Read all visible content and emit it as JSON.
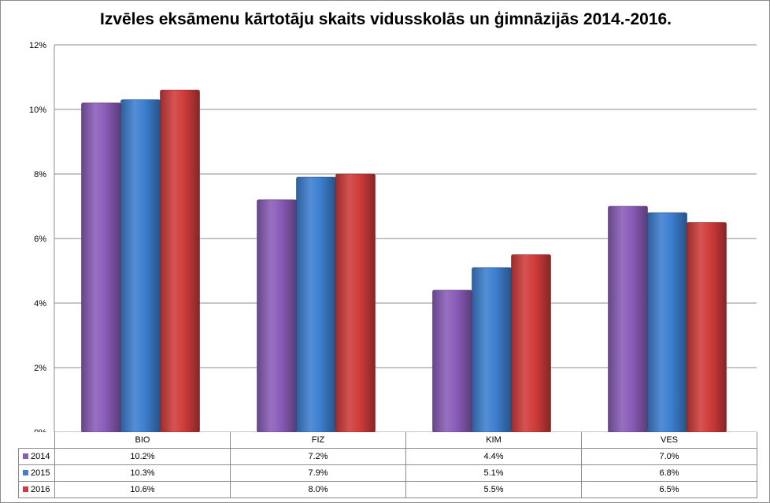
{
  "chart_data": {
    "type": "bar",
    "title": "Izvēles eksāmenu kārtotāju skaits vidusskolās un ģimnāzijās 2014.-2016.",
    "categories": [
      "BIO",
      "FIZ",
      "KIM",
      "VES"
    ],
    "series": [
      {
        "name": "2014",
        "color": "#8a5cb8",
        "values": [
          10.2,
          7.2,
          4.4,
          7.0
        ],
        "labels": [
          "10.2%",
          "7.2%",
          "4.4%",
          "7.0%"
        ]
      },
      {
        "name": "2015",
        "color": "#3d7fd0",
        "values": [
          10.3,
          7.9,
          5.1,
          6.8
        ],
        "labels": [
          "10.3%",
          "7.9%",
          "5.1%",
          "6.8%"
        ]
      },
      {
        "name": "2016",
        "color": "#d03b3b",
        "values": [
          10.6,
          8.0,
          5.5,
          6.5
        ],
        "labels": [
          "10.6%",
          "8.0%",
          "5.5%",
          "6.5%"
        ]
      }
    ],
    "ylim": [
      0,
      12
    ],
    "yticks": [
      "0%",
      "2%",
      "4%",
      "6%",
      "8%",
      "10%",
      "12%"
    ],
    "grid": true,
    "legend": "data-table"
  }
}
